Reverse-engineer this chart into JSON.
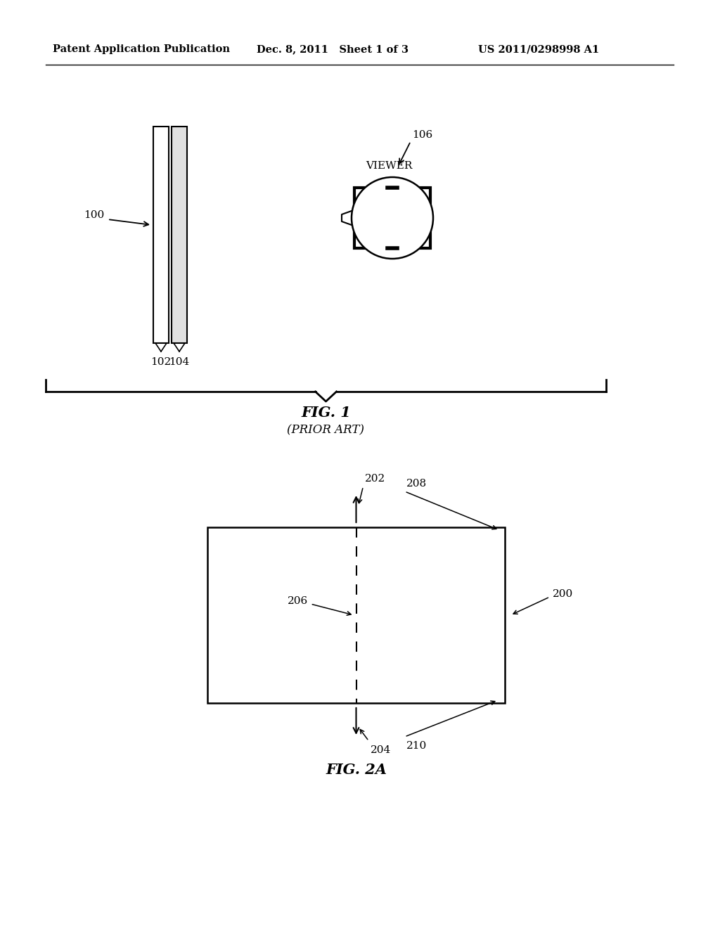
{
  "header_left": "Patent Application Publication",
  "header_mid": "Dec. 8, 2011   Sheet 1 of 3",
  "header_right": "US 2011/0298998 A1",
  "fig1_label": "FIG. 1",
  "fig1_sublabel": "(PRIOR ART)",
  "fig2_label": "FIG. 2A",
  "bg_color": "#ffffff",
  "line_color": "#000000"
}
